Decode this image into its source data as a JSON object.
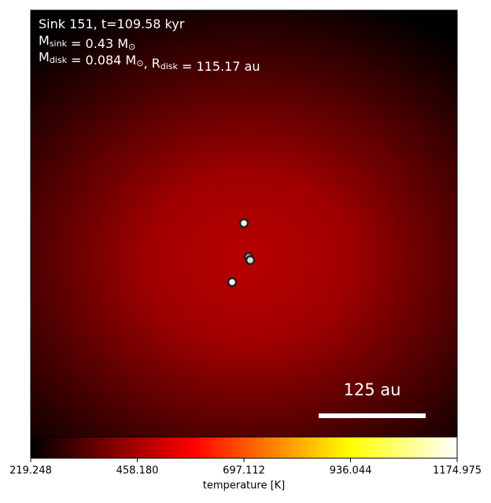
{
  "chart_data": {
    "type": "heatmap",
    "annotations": [
      [
        {
          "t": "Sink 151, t=109.58 kyr"
        }
      ],
      [
        {
          "t": "M",
          "sub": "sink"
        },
        {
          "t": " = 0.43 M",
          "sub": "⊙"
        }
      ],
      [
        {
          "t": "M",
          "sub": "disk"
        },
        {
          "t": " = 0.084 M",
          "sub": "⊙"
        },
        {
          "t": ", R",
          "sub": "disk"
        },
        {
          "t": " = 115.17 au"
        }
      ]
    ],
    "scalebar_label": "125 au",
    "colorbar": {
      "label": "temperature [K]",
      "lim": [
        219.248,
        1174.975
      ],
      "ticks": [
        219.248,
        {
          "value": 458.18,
          "label": "458.180"
        },
        697.112,
        936.044,
        1174.975
      ]
    }
  }
}
